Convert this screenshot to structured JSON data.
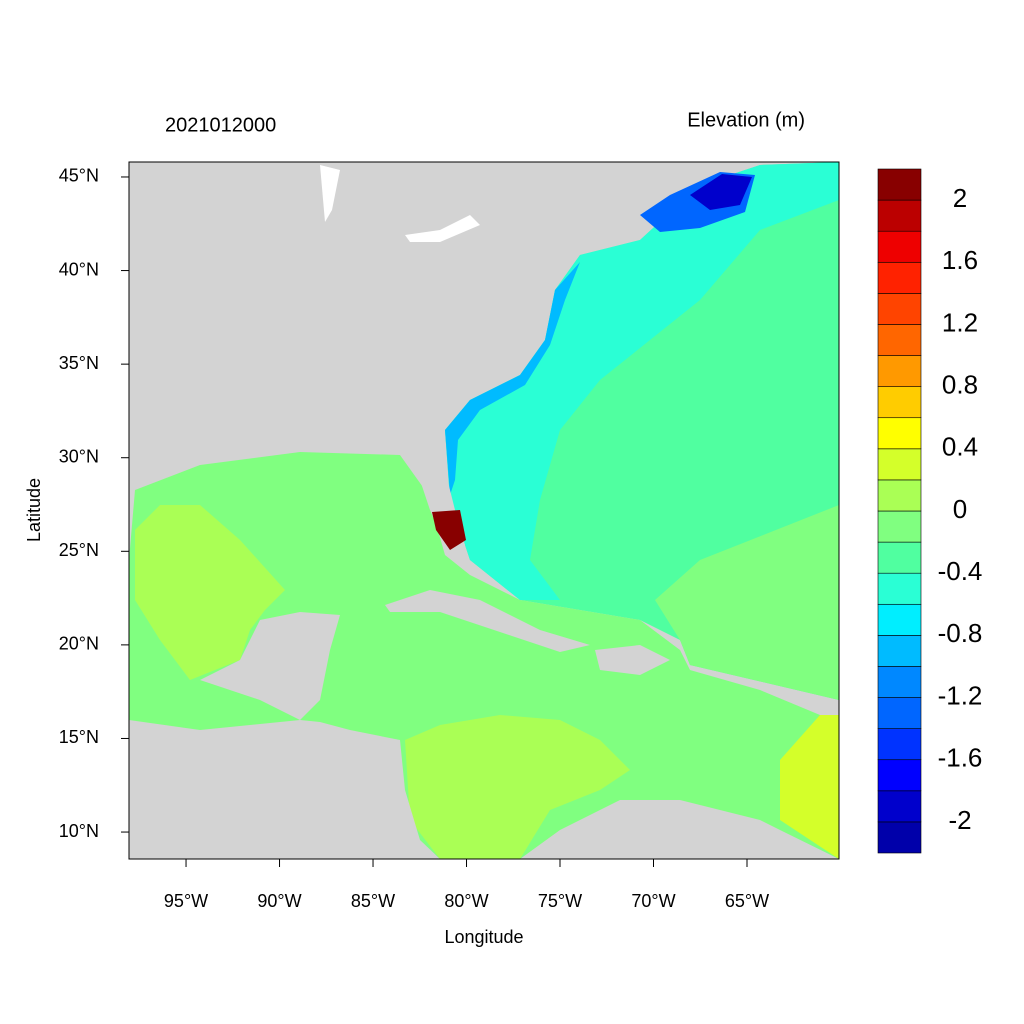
{
  "chart_data": {
    "type": "map",
    "title": "2021012000",
    "colorbar_title": "Elevation (m)",
    "xlabel": "Longitude",
    "ylabel": "Latitude",
    "xlim": [
      -98.05,
      -60.08
    ],
    "ylim": [
      8.56,
      45.8
    ],
    "xticks": [
      {
        "value": -95,
        "label": "95°W"
      },
      {
        "value": -90,
        "label": "90°W"
      },
      {
        "value": -85,
        "label": "85°W"
      },
      {
        "value": -80,
        "label": "80°W"
      },
      {
        "value": -75,
        "label": "75°W"
      },
      {
        "value": -70,
        "label": "70°W"
      },
      {
        "value": -65,
        "label": "65°W"
      }
    ],
    "yticks": [
      {
        "value": 10,
        "label": "10°N"
      },
      {
        "value": 15,
        "label": "15°N"
      },
      {
        "value": 20,
        "label": "20°N"
      },
      {
        "value": 25,
        "label": "25°N"
      },
      {
        "value": 30,
        "label": "30°N"
      },
      {
        "value": 35,
        "label": "35°N"
      },
      {
        "value": 40,
        "label": "40°N"
      },
      {
        "value": 45,
        "label": "45°N"
      }
    ],
    "colorbar": {
      "lim": [
        -2.2,
        2.2
      ],
      "ticks": [
        -2,
        -1.6,
        -1.2,
        -0.8,
        -0.4,
        0,
        0.4,
        0.8,
        1.2,
        1.6,
        2
      ],
      "colors": [
        "#0000aa",
        "#0000cc",
        "#0000ff",
        "#0033ff",
        "#0066ff",
        "#0088ff",
        "#00bbff",
        "#00eeff",
        "#2affd5",
        "#50ffa0",
        "#80ff80",
        "#aaff55",
        "#d4ff2a",
        "#ffff00",
        "#ffcc00",
        "#ff9900",
        "#ff6600",
        "#ff4400",
        "#ff2200",
        "#ee0000",
        "#bb0000",
        "#880000"
      ]
    }
  }
}
